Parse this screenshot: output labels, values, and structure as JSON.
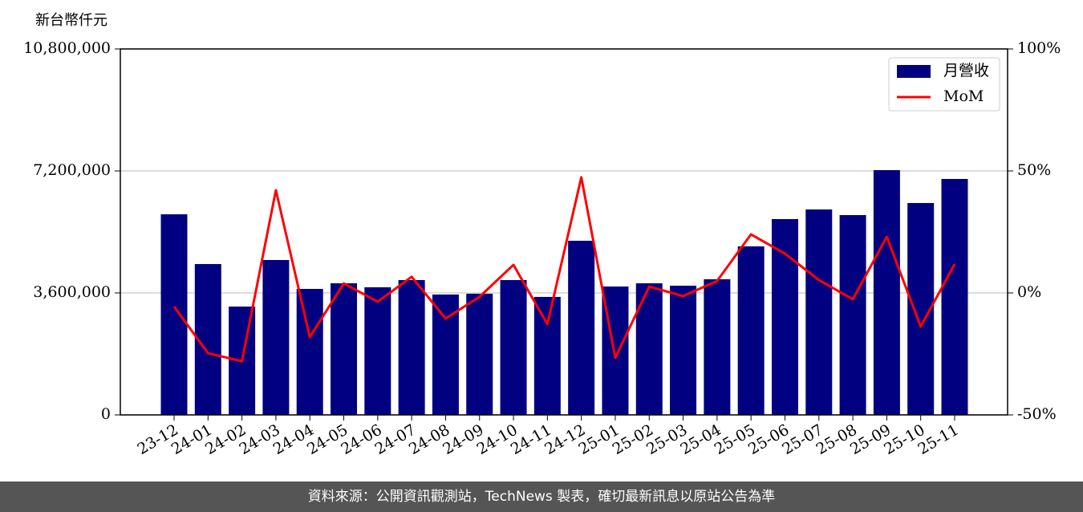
{
  "chart_data": {
    "type": "bar",
    "y_label": "新台幣仟元",
    "categories": [
      "23-12",
      "24-01",
      "24-02",
      "24-03",
      "24-04",
      "24-05",
      "24-06",
      "24-07",
      "24-08",
      "24-09",
      "24-10",
      "24-11",
      "24-12",
      "25-01",
      "25-02",
      "25-03",
      "25-04",
      "25-05",
      "25-06",
      "25-07",
      "25-08",
      "25-09",
      "25-10",
      "25-11"
    ],
    "series": [
      {
        "name": "月營收",
        "type": "bar",
        "color": "#000080",
        "values": [
          5920000,
          4452000,
          3197000,
          4571000,
          3718000,
          3884000,
          3766000,
          3979000,
          3553000,
          3576000,
          3979000,
          3482000,
          5139000,
          3789000,
          3884000,
          3813000,
          4003000,
          4974000,
          5779000,
          6063000,
          5897000,
          7224000,
          6253000,
          6963000
        ]
      },
      {
        "name": "MoM",
        "type": "line",
        "axis": "y2",
        "color": "#ff0000",
        "values": [
          -5.6,
          -24.7,
          -28,
          42.1,
          -18.1,
          3.9,
          -3.6,
          6.6,
          -10.5,
          -1.6,
          11.5,
          -12.8,
          47.4,
          -26.6,
          2.6,
          -1.3,
          4.9,
          24,
          16.1,
          5.3,
          -2.6,
          23,
          -13.8,
          11.8
        ]
      }
    ],
    "ylim": [
      0,
      10800000
    ],
    "yticks": [
      0,
      {
        "value": 3600000,
        "label": "3,600,000"
      },
      {
        "value": 7200000,
        "label": "7,200,000"
      },
      {
        "value": 10800000,
        "label": "10,800,000"
      }
    ],
    "y2lim": [
      -50,
      100
    ],
    "y2ticks": [
      {
        "value": -50,
        "label": "-50%"
      },
      {
        "value": 0,
        "label": "0%"
      },
      {
        "value": 50,
        "label": "50%"
      },
      {
        "value": 100,
        "label": "100%"
      }
    ],
    "grid": true,
    "legend": "upper right",
    "footer": "資料來源：公開資訊觀測站，TechNews 製表，確切最新訊息以原站公告為準"
  }
}
